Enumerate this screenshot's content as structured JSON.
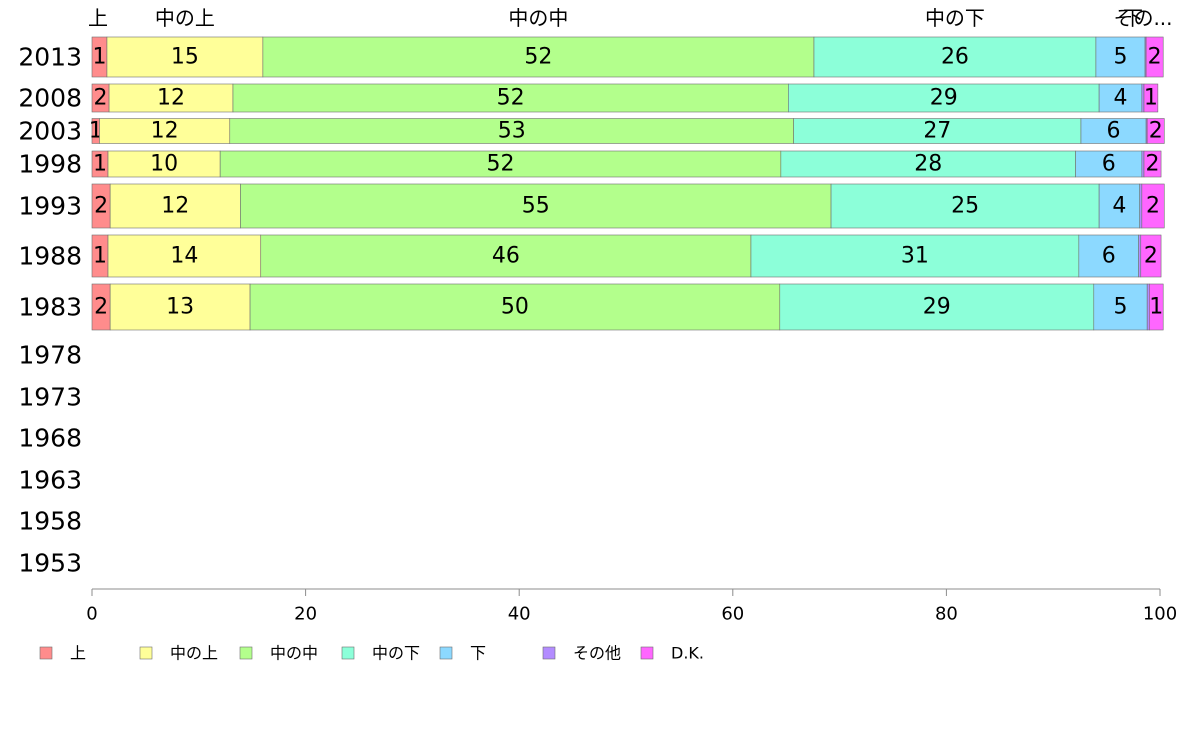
{
  "chart_data": {
    "type": "bar",
    "orientation": "horizontal",
    "stacked": true,
    "xlim": [
      0,
      100
    ],
    "x_ticks": [
      0,
      20,
      40,
      60,
      80,
      100
    ],
    "categories": [
      "2013",
      "2008",
      "2003",
      "1998",
      "1993",
      "1988",
      "1983",
      "1978",
      "1973",
      "1968",
      "1963",
      "1958",
      "1953"
    ],
    "series": [
      {
        "name": "上",
        "color": "#ff8c8c",
        "values": [
          1.4,
          1.6,
          0.7,
          1.5,
          1.7,
          1.5,
          1.7,
          null,
          null,
          null,
          null,
          null,
          null
        ],
        "labels": [
          "1",
          "2",
          "1",
          "1",
          "2",
          "1",
          "2",
          "",
          "",
          "",
          "",
          "",
          ""
        ]
      },
      {
        "name": "中の上",
        "color": "#ffff99",
        "values": [
          14.6,
          11.6,
          12.2,
          10.5,
          12.2,
          14.3,
          13.1,
          null,
          null,
          null,
          null,
          null,
          null
        ],
        "labels": [
          "15",
          "12",
          "12",
          "10",
          "12",
          "14",
          "13",
          "",
          "",
          "",
          "",
          "",
          ""
        ]
      },
      {
        "name": "中の中",
        "color": "#b3ff8c",
        "values": [
          51.6,
          52.0,
          52.8,
          52.5,
          55.3,
          45.9,
          49.6,
          null,
          null,
          null,
          null,
          null,
          null
        ],
        "labels": [
          "52",
          "52",
          "53",
          "52",
          "55",
          "46",
          "50",
          "",
          "",
          "",
          "",
          "",
          ""
        ]
      },
      {
        "name": "中の下",
        "color": "#8cffd9",
        "values": [
          26.4,
          29.1,
          26.9,
          27.6,
          25.1,
          30.7,
          29.4,
          null,
          null,
          null,
          null,
          null,
          null
        ],
        "labels": [
          "26",
          "29",
          "27",
          "28",
          "25",
          "31",
          "29",
          "",
          "",
          "",
          "",
          "",
          ""
        ]
      },
      {
        "name": "下",
        "color": "#8cd9ff",
        "values": [
          4.6,
          4.0,
          6.1,
          6.2,
          3.8,
          5.6,
          5.0,
          null,
          null,
          null,
          null,
          null,
          null
        ],
        "labels": [
          "5",
          "4",
          "6",
          "6",
          "4",
          "6",
          "5",
          "",
          "",
          "",
          "",
          "",
          ""
        ]
      },
      {
        "name": "その他",
        "color": "#b38cff",
        "values": [
          0.1,
          0.2,
          0.1,
          0.2,
          0.2,
          0.2,
          0.2,
          null,
          null,
          null,
          null,
          null,
          null
        ],
        "labels": [
          "",
          "",
          "",
          "",
          "",
          "",
          "",
          "",
          "",
          "",
          "",
          "",
          ""
        ]
      },
      {
        "name": "D.K.",
        "color": "#ff66ff",
        "values": [
          1.6,
          1.3,
          1.6,
          1.6,
          2.1,
          1.9,
          1.3,
          null,
          null,
          null,
          null,
          null,
          null
        ],
        "labels": [
          "2",
          "1",
          "2",
          "2",
          "2",
          "2",
          "1",
          "",
          "",
          "",
          "",
          "",
          ""
        ]
      }
    ],
    "top_labels": [
      "上",
      "中の上",
      "中の中",
      "中の下",
      "下",
      "その..."
    ],
    "legend_position": "bottom-left",
    "grid": false
  }
}
